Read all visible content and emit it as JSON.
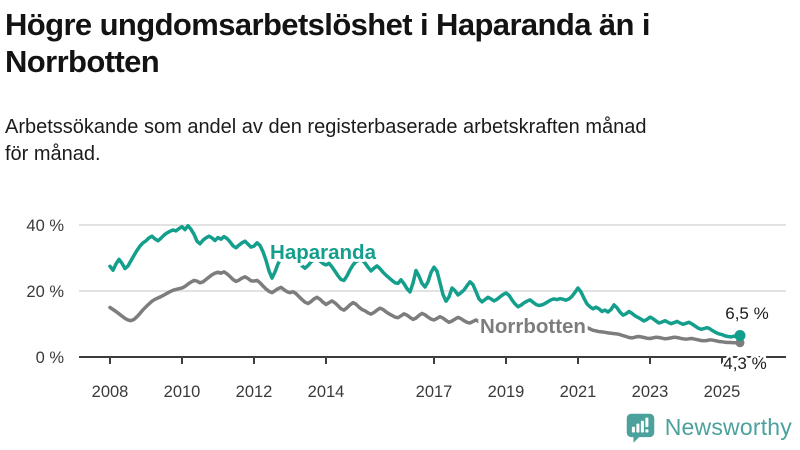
{
  "header": {
    "title_lines": [
      "Högre ungdomsarbetslöshet i Haparanda än i",
      "Norrbotten"
    ],
    "title": "Högre ungdomsarbetslöshet i Haparanda än i Norrbotten",
    "subtitle_lines": [
      "Arbetssökande som andel av den registerbaserade arbetskraften månad",
      "för månad."
    ],
    "subtitle": "Arbetssökande som andel av den registerbaserade arbetskraften månad för månad."
  },
  "footer": {
    "brand": "Newsworthy",
    "brand_color": "#4ba19b"
  },
  "chart_data": {
    "type": "line",
    "title": "Högre ungdomsarbetslöshet i Haparanda än i Norrbotten",
    "subtitle": "Arbetssökande som andel av den registerbaserade arbetskraften månad för månad.",
    "unit": "%",
    "x_start": "2008-01",
    "x_end": "2025-07",
    "x_step": "1 month",
    "ylim": [
      0,
      44
    ],
    "grid": "horizontal",
    "legend_position": "inline-labels",
    "colors": {
      "grid": "#d8d8d8",
      "axis": "#3c3c3c",
      "tick_label": "#3a3a3a",
      "end_label_text": "#1c1c1c",
      "background": "#ffffff"
    },
    "y_ticks": [
      {
        "value": 40,
        "label": "40 %"
      },
      {
        "value": 20,
        "label": "20 %"
      },
      {
        "value": 0,
        "label": "0 %"
      }
    ],
    "x_ticks": [
      {
        "year": 2008,
        "label": "2008"
      },
      {
        "year": 2010,
        "label": "2010"
      },
      {
        "year": 2012,
        "label": "2012"
      },
      {
        "year": 2014,
        "label": "2014"
      },
      {
        "year": 2017,
        "label": "2017"
      },
      {
        "year": 2019,
        "label": "2019"
      },
      {
        "year": 2021,
        "label": "2021"
      },
      {
        "year": 2023,
        "label": "2023"
      },
      {
        "year": 2025,
        "label": "2025"
      }
    ],
    "series": [
      {
        "name": "Haparanda",
        "color": "#149e8c",
        "end_label": "6,5 %",
        "end_value": 6.5,
        "values": [
          27.5,
          26.3,
          28.2,
          29.6,
          28.4,
          26.8,
          27.6,
          29.2,
          30.8,
          32.3,
          33.6,
          34.6,
          35.2,
          36.1,
          36.6,
          35.8,
          35.2,
          36.0,
          36.9,
          37.6,
          38.1,
          38.5,
          38.2,
          38.9,
          39.5,
          38.6,
          39.8,
          38.7,
          37.2,
          35.1,
          34.3,
          35.4,
          36.1,
          36.6,
          36.1,
          35.3,
          36.2,
          35.7,
          36.5,
          35.9,
          34.9,
          33.7,
          33.1,
          33.9,
          34.6,
          35.1,
          34.2,
          33.3,
          33.6,
          34.6,
          33.8,
          31.9,
          29.3,
          26.1,
          23.9,
          25.8,
          28.2,
          29.9,
          30.8,
          31.3,
          30.7,
          31.2,
          30.2,
          28.7,
          27.6,
          26.9,
          27.7,
          28.8,
          29.5,
          29.8,
          29.1,
          28.3,
          27.9,
          28.4,
          27.3,
          26.0,
          24.6,
          23.5,
          23.2,
          24.6,
          26.4,
          27.9,
          28.9,
          29.3,
          29.4,
          28.5,
          27.2,
          26.1,
          26.9,
          27.6,
          26.8,
          25.7,
          24.8,
          24.0,
          23.2,
          22.5,
          22.3,
          23.4,
          22.2,
          20.7,
          19.7,
          22.4,
          26.2,
          24.5,
          22.3,
          21.2,
          22.8,
          25.6,
          27.2,
          26.0,
          22.5,
          18.9,
          16.9,
          18.2,
          20.9,
          20.1,
          18.8,
          19.5,
          20.3,
          21.6,
          22.8,
          21.9,
          19.8,
          17.6,
          16.7,
          17.4,
          18.1,
          17.6,
          17.0,
          17.5,
          18.2,
          18.9,
          19.4,
          18.7,
          17.3,
          16.1,
          15.2,
          15.7,
          16.4,
          16.9,
          17.3,
          16.6,
          15.9,
          15.6,
          15.8,
          16.2,
          16.8,
          17.3,
          17.6,
          17.4,
          17.7,
          17.5,
          17.2,
          17.6,
          18.4,
          19.6,
          20.9,
          19.7,
          17.8,
          16.1,
          15.2,
          14.6,
          15.1,
          14.6,
          13.8,
          14.2,
          13.6,
          14.4,
          15.8,
          14.9,
          13.6,
          12.7,
          13.1,
          13.8,
          13.2,
          12.5,
          12.0,
          11.5,
          10.9,
          11.4,
          12.1,
          11.6,
          10.9,
          10.3,
          10.6,
          11.0,
          10.5,
          10.1,
          10.4,
          10.8,
          10.3,
          9.9,
          10.2,
          10.5,
          10.0,
          9.4,
          8.8,
          8.4,
          8.6,
          8.9,
          8.5,
          7.9,
          7.4,
          7.0,
          6.8,
          6.4,
          6.2,
          6.1,
          6.3,
          6.2,
          6.5
        ]
      },
      {
        "name": "Norrbotten",
        "color": "#7d7d7d",
        "end_label": "4,3 %",
        "end_value": 4.3,
        "values": [
          15.0,
          14.4,
          13.8,
          13.1,
          12.4,
          11.7,
          11.2,
          11.0,
          11.4,
          12.2,
          13.2,
          14.3,
          15.2,
          16.1,
          16.9,
          17.5,
          17.9,
          18.3,
          18.8,
          19.3,
          19.8,
          20.2,
          20.5,
          20.7,
          20.9,
          21.4,
          22.1,
          22.7,
          23.2,
          23.0,
          22.5,
          22.8,
          23.5,
          24.2,
          24.9,
          25.4,
          25.7,
          25.4,
          25.8,
          25.2,
          24.4,
          23.5,
          22.9,
          23.3,
          23.9,
          24.3,
          23.8,
          23.1,
          23.0,
          23.2,
          22.5,
          21.5,
          20.6,
          19.9,
          19.5,
          20.1,
          20.7,
          21.1,
          20.4,
          19.8,
          19.5,
          19.8,
          19.2,
          18.3,
          17.4,
          16.6,
          16.2,
          16.8,
          17.6,
          18.1,
          17.5,
          16.6,
          15.9,
          16.5,
          17.0,
          16.4,
          15.5,
          14.6,
          14.2,
          14.9,
          15.8,
          16.5,
          16.0,
          15.1,
          14.4,
          14.0,
          13.4,
          13.0,
          13.5,
          14.2,
          14.8,
          14.4,
          13.7,
          13.1,
          12.6,
          12.1,
          11.9,
          12.5,
          13.1,
          12.7,
          12.0,
          11.4,
          11.8,
          12.6,
          13.2,
          12.8,
          12.1,
          11.5,
          11.2,
          11.7,
          12.2,
          11.8,
          11.1,
          10.5,
          10.9,
          11.5,
          12.0,
          11.6,
          11.0,
          10.5,
          10.3,
          10.8,
          11.2,
          10.7,
          10.1,
          9.6,
          9.9,
          10.4,
          10.8,
          10.4,
          9.9,
          9.5,
          9.3,
          9.7,
          10.0,
          9.6,
          9.1,
          8.7,
          9.0,
          9.4,
          9.7,
          9.4,
          9.0,
          8.7,
          8.6,
          8.8,
          9.4,
          10.3,
          10.9,
          11.2,
          11.0,
          10.7,
          10.4,
          10.1,
          9.9,
          9.8,
          9.7,
          9.5,
          9.2,
          8.9,
          8.5,
          8.1,
          7.9,
          7.7,
          7.6,
          7.5,
          7.3,
          7.2,
          7.1,
          7.0,
          6.8,
          6.5,
          6.2,
          5.9,
          5.8,
          6.0,
          6.2,
          6.1,
          5.9,
          5.7,
          5.6,
          5.8,
          6.0,
          5.9,
          5.7,
          5.5,
          5.6,
          5.8,
          6.0,
          5.9,
          5.7,
          5.5,
          5.4,
          5.5,
          5.6,
          5.4,
          5.2,
          5.0,
          4.9,
          5.0,
          5.2,
          5.1,
          4.9,
          4.7,
          4.6,
          4.5,
          4.4,
          4.4,
          4.3,
          4.3,
          4.3
        ]
      }
    ]
  }
}
